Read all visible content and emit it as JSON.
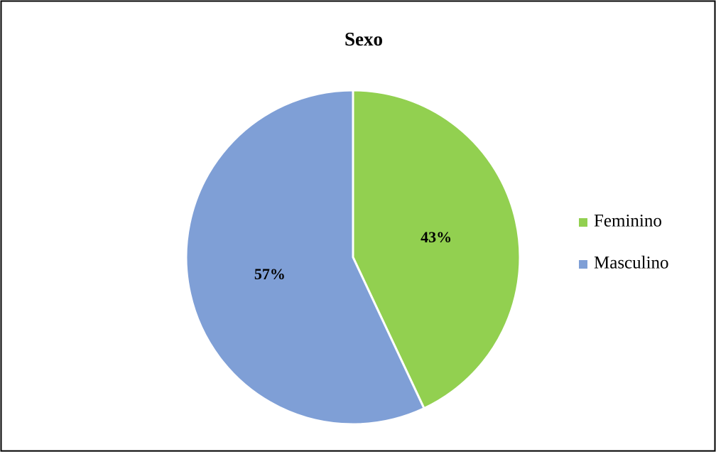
{
  "chart_data": {
    "type": "pie",
    "title": "Sexo",
    "categories": [
      "Feminino",
      "Masculino"
    ],
    "values": [
      43,
      57
    ],
    "value_labels": [
      "43%",
      "57%"
    ],
    "colors": [
      "#92d050",
      "#7f9fd6"
    ],
    "legend": "right"
  }
}
